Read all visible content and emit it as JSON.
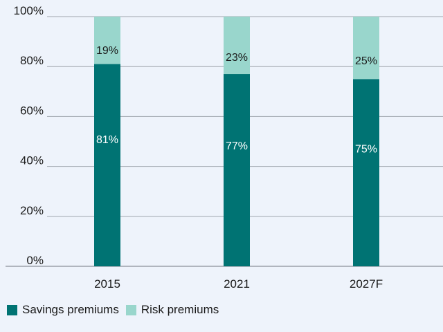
{
  "chart_data": {
    "type": "bar",
    "stacked": true,
    "categories": [
      "2015",
      "2021",
      "2027F"
    ],
    "series": [
      {
        "name": "Savings premiums",
        "values": [
          81,
          77,
          75
        ],
        "labels": [
          "81%",
          "77%",
          "75%"
        ],
        "color": "#007373"
      },
      {
        "name": "Risk premiums",
        "values": [
          19,
          23,
          25
        ],
        "labels": [
          "19%",
          "23%",
          "25%"
        ],
        "color": "#99d6cc"
      }
    ],
    "ylim": [
      0,
      100
    ],
    "yticks": [
      {
        "value": 0,
        "label": "0%"
      },
      {
        "value": 20,
        "label": "20%"
      },
      {
        "value": 40,
        "label": "40%"
      },
      {
        "value": 60,
        "label": "60%"
      },
      {
        "value": 80,
        "label": "80%"
      },
      {
        "value": 100,
        "label": "100%"
      }
    ],
    "title": "",
    "xlabel": "",
    "ylabel": "",
    "grid": true,
    "legend_position": "bottom-left"
  }
}
